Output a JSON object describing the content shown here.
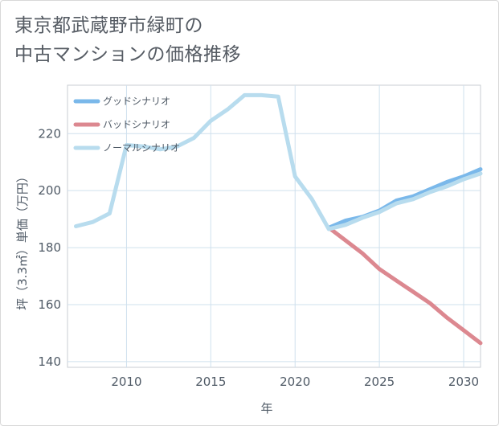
{
  "title": {
    "line1": "東京都武蔵野市緑町の",
    "line2": "中古マンションの価格推移"
  },
  "chart_data": {
    "type": "line",
    "title": "東京都武蔵野市緑町の中古マンションの価格推移",
    "xlabel": "年",
    "ylabel": "坪（3.3㎡）単価（万円）",
    "xlim": [
      2006.5,
      2031
    ],
    "ylim": [
      138,
      237
    ],
    "xticks": [
      2010,
      2015,
      2020,
      2025,
      2030
    ],
    "yticks": [
      140,
      160,
      180,
      200,
      220
    ],
    "grid": true,
    "legend_position": "top-left",
    "series": [
      {
        "name": "グッドシナリオ",
        "color": "#7ab8ea",
        "points": [
          [
            2022,
            187
          ],
          [
            2023,
            189.5
          ],
          [
            2024,
            190.8
          ],
          [
            2025,
            193
          ],
          [
            2026,
            196.5
          ],
          [
            2027,
            198
          ],
          [
            2028,
            200.5
          ],
          [
            2029,
            203
          ],
          [
            2030,
            205
          ],
          [
            2031,
            207.5
          ]
        ]
      },
      {
        "name": "バッドシナリオ",
        "color": "#dc8890",
        "points": [
          [
            2022,
            187
          ],
          [
            2023,
            182.5
          ],
          [
            2024,
            178
          ],
          [
            2025,
            172.5
          ],
          [
            2026,
            168.5
          ],
          [
            2027,
            164.5
          ],
          [
            2028,
            160.5
          ],
          [
            2029,
            155.5
          ],
          [
            2030,
            151
          ],
          [
            2031,
            146.5
          ]
        ]
      },
      {
        "name": "ノーマルシナリオ",
        "color": "#b8dcee",
        "points": [
          [
            2007,
            187.5
          ],
          [
            2008,
            189
          ],
          [
            2009,
            192
          ],
          [
            2010,
            216
          ],
          [
            2011,
            215.5
          ],
          [
            2012,
            214.5
          ],
          [
            2013,
            215.5
          ],
          [
            2014,
            218.5
          ],
          [
            2015,
            224.5
          ],
          [
            2016,
            228.5
          ],
          [
            2017,
            233.5
          ],
          [
            2018,
            233.5
          ],
          [
            2019,
            233
          ],
          [
            2020,
            205
          ],
          [
            2021,
            197
          ],
          [
            2022,
            186.5
          ],
          [
            2023,
            188
          ],
          [
            2024,
            190.5
          ],
          [
            2025,
            192.5
          ],
          [
            2026,
            195.5
          ],
          [
            2027,
            197
          ],
          [
            2028,
            199.5
          ],
          [
            2029,
            201.5
          ],
          [
            2030,
            204
          ],
          [
            2031,
            206
          ]
        ]
      }
    ]
  }
}
